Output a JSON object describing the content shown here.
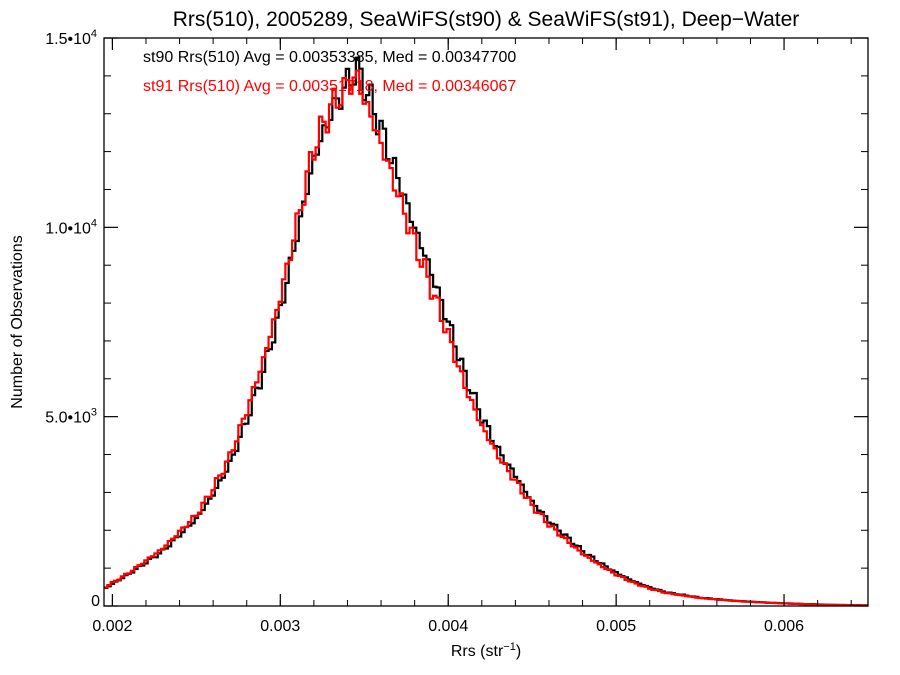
{
  "chart_data": {
    "type": "line",
    "style": "step-histogram",
    "title": "Rrs(510), 2005289, SeaWiFS(st90) & SeaWiFS(st91), Deep−Water",
    "xlabel": "Rrs (str",
    "xlabel_sup": "−1",
    "xlabel_close": ")",
    "ylabel": "Number of Observations",
    "xlim": [
      0.00195,
      0.0065
    ],
    "ylim": [
      0,
      15000
    ],
    "x_ticks": [
      {
        "value": 0.002,
        "label": "0.002"
      },
      {
        "value": 0.003,
        "label": "0.003"
      },
      {
        "value": 0.004,
        "label": "0.004"
      },
      {
        "value": 0.005,
        "label": "0.005"
      },
      {
        "value": 0.006,
        "label": "0.006"
      }
    ],
    "y_ticks": [
      {
        "value": 0,
        "label": "0",
        "sup": ""
      },
      {
        "value": 5000,
        "label": "5.0•10",
        "sup": "3"
      },
      {
        "value": 10000,
        "label": "1.0•10",
        "sup": "4"
      },
      {
        "value": 15000,
        "label": "1.5•10",
        "sup": "4"
      }
    ],
    "annotations": [
      {
        "text": "st90 Rrs(510) Avg = 0.00353385, Med = 0.00347700",
        "color": "#000000"
      },
      {
        "text": "st91 Rrs(510) Avg = 0.00351718, Med = 0.00346067",
        "color": "#ff0000"
      }
    ],
    "series": [
      {
        "color": "#000000",
        "x": [
          0.00195,
          0.0021,
          0.0023,
          0.0025,
          0.0026,
          0.0027,
          0.0028,
          0.0029,
          0.003,
          0.0031,
          0.0032,
          0.0033,
          0.0034,
          0.00345,
          0.0035,
          0.0036,
          0.0037,
          0.0038,
          0.0039,
          0.004,
          0.0041,
          0.0042,
          0.0043,
          0.0044,
          0.0045,
          0.0046,
          0.0047,
          0.0048,
          0.0049,
          0.005,
          0.0051,
          0.0052,
          0.0053,
          0.0055,
          0.0057,
          0.0059,
          0.0061,
          0.0063,
          0.0065
        ],
        "y": [
          450,
          850,
          1450,
          2300,
          2950,
          3750,
          4900,
          6200,
          7800,
          9800,
          11800,
          13000,
          13800,
          14200,
          13800,
          12600,
          11300,
          10000,
          8800,
          7500,
          6100,
          5000,
          4100,
          3450,
          2750,
          2250,
          1850,
          1450,
          1150,
          880,
          660,
          490,
          360,
          220,
          140,
          90,
          55,
          30,
          15
        ]
      },
      {
        "color": "#ff0000",
        "x": [
          0.00195,
          0.0021,
          0.0023,
          0.0025,
          0.0026,
          0.0027,
          0.0028,
          0.0029,
          0.003,
          0.0031,
          0.0032,
          0.0033,
          0.0034,
          0.00345,
          0.0035,
          0.0036,
          0.0037,
          0.0038,
          0.0039,
          0.004,
          0.0041,
          0.0042,
          0.0043,
          0.0044,
          0.0045,
          0.0046,
          0.0047,
          0.0048,
          0.0049,
          0.005,
          0.0051,
          0.0052,
          0.0053,
          0.0055,
          0.0057,
          0.0059,
          0.0061,
          0.0063,
          0.0065
        ],
        "y": [
          480,
          880,
          1520,
          2400,
          3100,
          3950,
          5150,
          6500,
          8150,
          10100,
          12100,
          13150,
          13750,
          14000,
          13400,
          12200,
          10900,
          9600,
          8400,
          7150,
          5800,
          4750,
          3950,
          3300,
          2650,
          2150,
          1750,
          1380,
          1090,
          830,
          620,
          460,
          340,
          210,
          135,
          85,
          50,
          28,
          14
        ]
      }
    ]
  }
}
